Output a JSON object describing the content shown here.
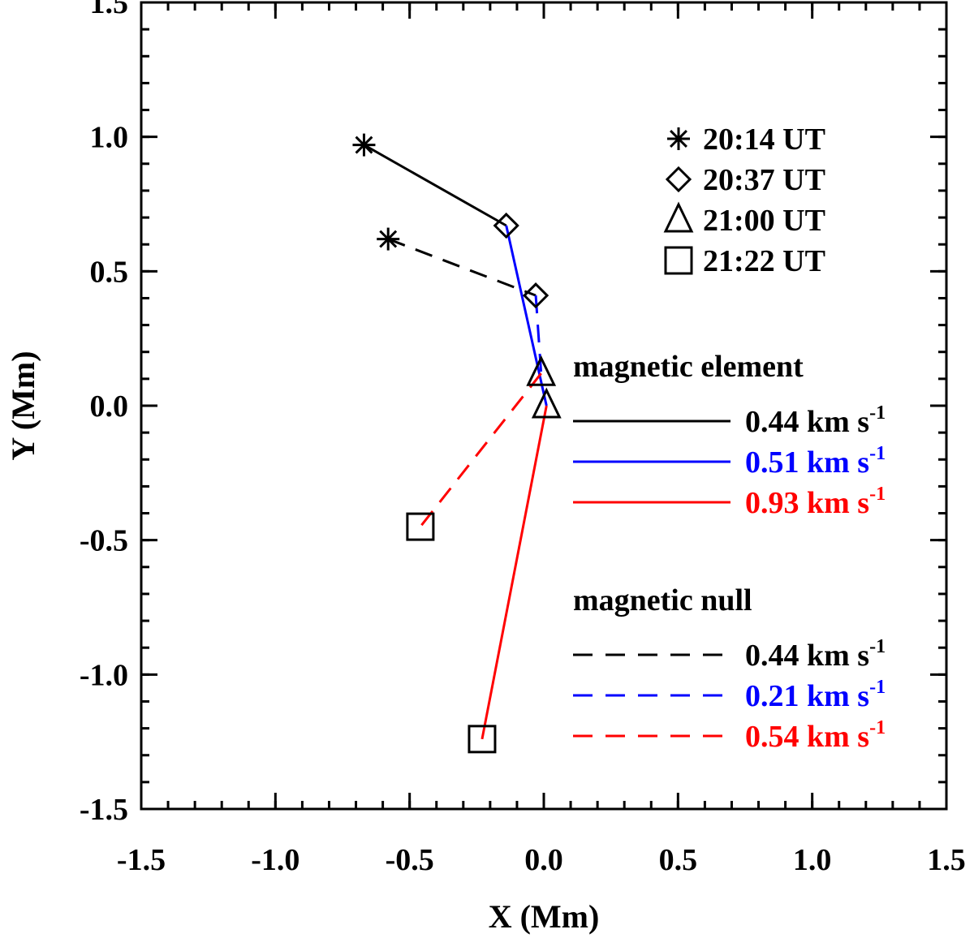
{
  "chart_data": {
    "type": "line",
    "title": "",
    "xlabel": "X (Mm)",
    "ylabel": "Y (Mm)",
    "xlim": [
      -1.5,
      1.5
    ],
    "ylim": [
      -1.5,
      1.5
    ],
    "x_ticks": [
      -1.5,
      -1.0,
      -0.5,
      0.0,
      0.5,
      1.0,
      1.5
    ],
    "x_tick_labels": [
      "-1.5",
      "-1.0",
      "-0.5",
      "0.0",
      "0.5",
      "1.0",
      "1.5"
    ],
    "y_ticks": [
      -1.5,
      -1.0,
      -0.5,
      0.0,
      0.5,
      1.0,
      1.5
    ],
    "y_tick_labels": [
      "-1.5",
      "-1.0",
      "-0.5",
      "0.0",
      "0.5",
      "1.0",
      "1.5"
    ],
    "minor_step": 0.1,
    "grid": false,
    "colors": {
      "black": "#000000",
      "blue": "#0000ff",
      "red": "#ff0000"
    },
    "time_legend": {
      "position": "top-right",
      "entries": [
        {
          "marker": "asterisk-icon",
          "label": "20:14 UT"
        },
        {
          "marker": "diamond-icon",
          "label": "20:37 UT"
        },
        {
          "marker": "triangle-icon",
          "label": "21:00 UT"
        },
        {
          "marker": "square-icon",
          "label": "21:22 UT"
        }
      ]
    },
    "tracks": [
      {
        "name": "magnetic element",
        "dash": "solid",
        "points": [
          {
            "x": -0.67,
            "y": 0.97,
            "marker": "asterisk-icon"
          },
          {
            "x": -0.14,
            "y": 0.67,
            "marker": "diamond-icon"
          },
          {
            "x": 0.01,
            "y": 0.0,
            "marker": "triangle-icon"
          },
          {
            "x": -0.23,
            "y": -1.24,
            "marker": "square-icon"
          }
        ],
        "segments": [
          {
            "from": 0,
            "to": 1,
            "color": "#000000",
            "speed": "0.44 km s",
            "unit_exp": "-1"
          },
          {
            "from": 1,
            "to": 2,
            "color": "#0000ff",
            "speed": "0.51 km s",
            "unit_exp": "-1"
          },
          {
            "from": 2,
            "to": 3,
            "color": "#ff0000",
            "speed": "0.93 km s",
            "unit_exp": "-1"
          }
        ]
      },
      {
        "name": "magnetic null",
        "dash": "dashed",
        "points": [
          {
            "x": -0.58,
            "y": 0.62,
            "marker": "asterisk-icon"
          },
          {
            "x": -0.03,
            "y": 0.41,
            "marker": "diamond-icon"
          },
          {
            "x": -0.01,
            "y": 0.12,
            "marker": "triangle-icon"
          },
          {
            "x": -0.46,
            "y": -0.45,
            "marker": "square-icon"
          }
        ],
        "segments": [
          {
            "from": 0,
            "to": 1,
            "color": "#000000",
            "speed": "0.44 km s",
            "unit_exp": "-1"
          },
          {
            "from": 1,
            "to": 2,
            "color": "#0000ff",
            "speed": "0.21 km s",
            "unit_exp": "-1"
          },
          {
            "from": 2,
            "to": 3,
            "color": "#ff0000",
            "speed": "0.54 km s",
            "unit_exp": "-1"
          }
        ]
      }
    ]
  }
}
